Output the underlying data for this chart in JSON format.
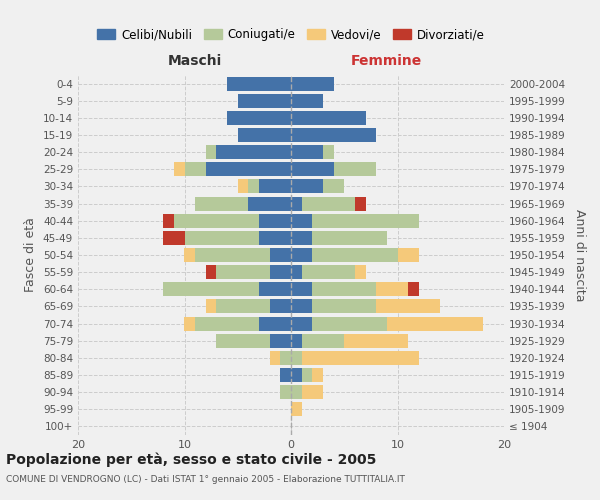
{
  "age_groups": [
    "100+",
    "95-99",
    "90-94",
    "85-89",
    "80-84",
    "75-79",
    "70-74",
    "65-69",
    "60-64",
    "55-59",
    "50-54",
    "45-49",
    "40-44",
    "35-39",
    "30-34",
    "25-29",
    "20-24",
    "15-19",
    "10-14",
    "5-9",
    "0-4"
  ],
  "birth_years": [
    "≤ 1904",
    "1905-1909",
    "1910-1914",
    "1915-1919",
    "1920-1924",
    "1925-1929",
    "1930-1934",
    "1935-1939",
    "1940-1944",
    "1945-1949",
    "1950-1954",
    "1955-1959",
    "1960-1964",
    "1965-1969",
    "1970-1974",
    "1975-1979",
    "1980-1984",
    "1985-1989",
    "1990-1994",
    "1995-1999",
    "2000-2004"
  ],
  "maschi": {
    "celibi": [
      0,
      0,
      0,
      1,
      0,
      2,
      3,
      2,
      3,
      2,
      2,
      3,
      3,
      4,
      3,
      8,
      7,
      5,
      6,
      5,
      6
    ],
    "coniugati": [
      0,
      0,
      1,
      0,
      1,
      5,
      6,
      5,
      9,
      5,
      7,
      7,
      8,
      5,
      1,
      2,
      1,
      0,
      0,
      0,
      0
    ],
    "vedovi": [
      0,
      0,
      0,
      0,
      1,
      0,
      1,
      1,
      0,
      0,
      1,
      0,
      0,
      0,
      1,
      1,
      0,
      0,
      0,
      0,
      0
    ],
    "divorziati": [
      0,
      0,
      0,
      0,
      0,
      0,
      0,
      0,
      0,
      1,
      0,
      2,
      1,
      0,
      0,
      0,
      0,
      0,
      0,
      0,
      0
    ]
  },
  "femmine": {
    "nubili": [
      0,
      0,
      0,
      1,
      0,
      1,
      2,
      2,
      2,
      1,
      2,
      2,
      2,
      1,
      3,
      4,
      3,
      8,
      7,
      3,
      4
    ],
    "coniugate": [
      0,
      0,
      1,
      1,
      1,
      4,
      7,
      6,
      6,
      5,
      8,
      7,
      10,
      5,
      2,
      4,
      1,
      0,
      0,
      0,
      0
    ],
    "vedove": [
      0,
      1,
      2,
      1,
      11,
      6,
      9,
      6,
      3,
      1,
      2,
      0,
      0,
      0,
      0,
      0,
      0,
      0,
      0,
      0,
      0
    ],
    "divorziate": [
      0,
      0,
      0,
      0,
      0,
      0,
      0,
      0,
      1,
      0,
      0,
      0,
      0,
      1,
      0,
      0,
      0,
      0,
      0,
      0,
      0
    ]
  },
  "colors": {
    "celibi": "#4472a8",
    "coniugati": "#b5c99a",
    "vedovi": "#f5c97a",
    "divorziati": "#c0392b"
  },
  "xlim": 20,
  "title": "Popolazione per età, sesso e stato civile - 2005",
  "subtitle": "COMUNE DI VENDROGNO (LC) - Dati ISTAT 1° gennaio 2005 - Elaborazione TUTTITALIA.IT",
  "ylabel_left": "Fasce di età",
  "ylabel_right": "Anni di nascita",
  "xlabel_maschi": "Maschi",
  "xlabel_femmine": "Femmine",
  "legend_labels": [
    "Celibi/Nubili",
    "Coniugati/e",
    "Vedovi/e",
    "Divorziati/e"
  ],
  "background_color": "#f0f0f0"
}
